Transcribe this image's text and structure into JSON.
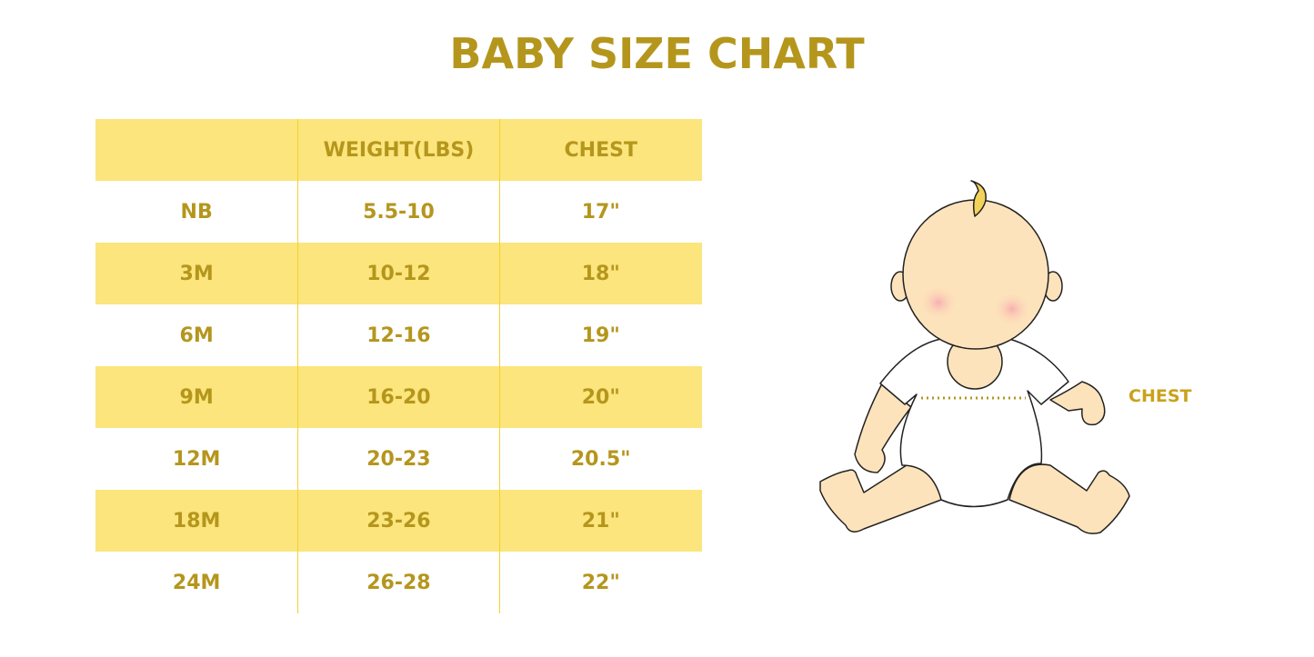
{
  "title": "BABY SIZE CHART",
  "table": {
    "headers": [
      "",
      "WEIGHT(LBS)",
      "CHEST"
    ],
    "rows": [
      [
        "NB",
        "5.5-10",
        "17\""
      ],
      [
        "3M",
        "10-12",
        "18\""
      ],
      [
        "6M",
        "12-16",
        "19\""
      ],
      [
        "9M",
        "16-20",
        "20\""
      ],
      [
        "12M",
        "20-23",
        "20.5\""
      ],
      [
        "18M",
        "23-26",
        "21\""
      ],
      [
        "24M",
        "26-28",
        "22\""
      ]
    ]
  },
  "illustration": {
    "chest_label": "CHEST"
  },
  "colors": {
    "accent_text": "#b5961d",
    "row_highlight": "#fbe57c",
    "divider": "#f5d02e",
    "skin": "#fde3bb"
  }
}
